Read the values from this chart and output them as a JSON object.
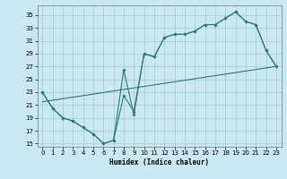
{
  "xlabel": "Humidex (Indice chaleur)",
  "bg_color": "#cbe8f0",
  "grid_color": "#9ecfcc",
  "line_color": "#2d7a6e",
  "xlim": [
    -0.5,
    23.5
  ],
  "ylim": [
    14.5,
    36.5
  ],
  "yticks": [
    15,
    17,
    19,
    21,
    23,
    25,
    27,
    29,
    31,
    33,
    35
  ],
  "xticks": [
    0,
    1,
    2,
    3,
    4,
    5,
    6,
    7,
    8,
    9,
    10,
    11,
    12,
    13,
    14,
    15,
    16,
    17,
    18,
    19,
    20,
    21,
    22,
    23
  ],
  "curve1_x": [
    0,
    1,
    2,
    3,
    4,
    5,
    6,
    7,
    8,
    9,
    10,
    11,
    12,
    13,
    14,
    15,
    16,
    17,
    18,
    19,
    20,
    21,
    22,
    23
  ],
  "curve1_y": [
    23,
    20.5,
    19,
    18.5,
    17.5,
    16.5,
    15.0,
    15.5,
    22.5,
    20,
    29,
    28.5,
    31.5,
    32,
    32,
    32.5,
    33.5,
    33.5,
    34.5,
    35.5,
    34,
    33.5,
    29.5,
    27
  ],
  "curve2_x": [
    0,
    1,
    2,
    3,
    4,
    5,
    6,
    7,
    8,
    9,
    10,
    11,
    12,
    13,
    14,
    15,
    16,
    17,
    18,
    19,
    20,
    21,
    22,
    23
  ],
  "curve2_y": [
    23,
    20.5,
    19,
    18.5,
    17.5,
    16.5,
    15.0,
    15.5,
    26.5,
    19.5,
    29,
    28.5,
    31.5,
    32,
    32,
    32.5,
    33.5,
    33.5,
    34.5,
    35.5,
    34,
    33.5,
    29.5,
    27
  ],
  "line_x": [
    0,
    23
  ],
  "line_y": [
    21.5,
    27
  ]
}
